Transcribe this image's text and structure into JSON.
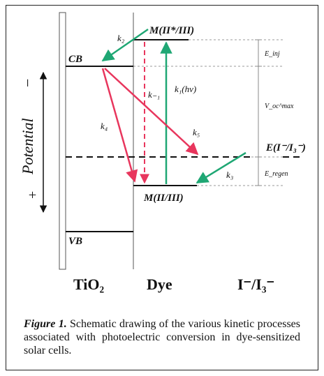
{
  "diagram": {
    "levels": {
      "cb": "CB",
      "vb": "VB",
      "dye_excited": "M(II*/III)",
      "dye_ground": "M(II/III)",
      "redox": "E(I⁻/I₃⁻)"
    },
    "rates": {
      "k2": "k₂",
      "k_minus1": "k₋₁",
      "k1": "k₁(hν)",
      "k4": "k₄",
      "k5": "k₅",
      "k3": "k₃"
    },
    "side_labels": {
      "e_inj": "E_inj",
      "v_oc_max": "V_oc^max",
      "e_regen": "E_regen"
    },
    "potential_axis": {
      "label": "Potential",
      "minus": "−",
      "plus": "+"
    },
    "bottom_labels": {
      "tio2": "TiO₂",
      "dye": "Dye",
      "electrolyte": "I⁻/I₃⁻"
    },
    "colors": {
      "red": "#e8365d",
      "green": "#1fa774",
      "line": "#111111",
      "dashed_grey": "#9a9a9a"
    }
  },
  "caption": {
    "label": "Figure 1.",
    "text": " Schematic drawing of the various kinetic processes associated with photoelectric conversion in dye-sensitized solar cells."
  }
}
